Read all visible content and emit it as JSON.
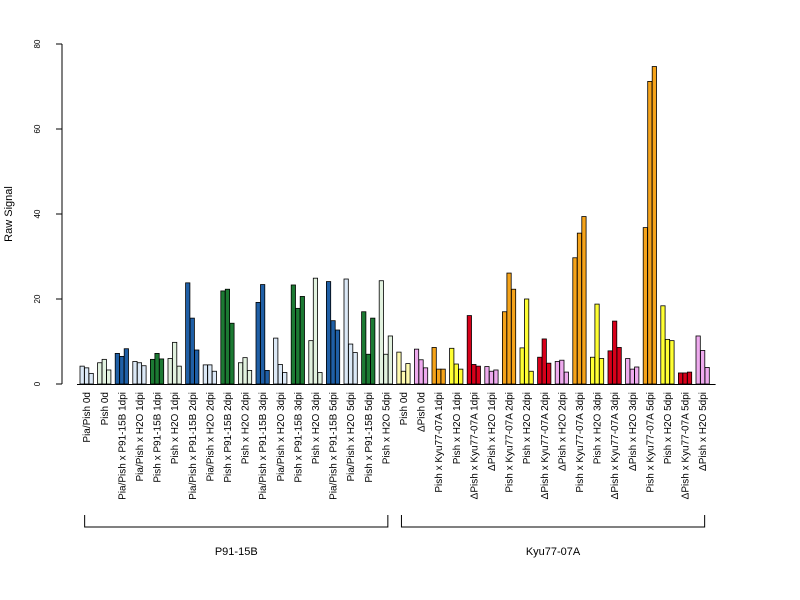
{
  "chart_data": {
    "type": "bar",
    "ylabel": "Raw Signal",
    "ylim": [
      0,
      80
    ],
    "yticks": [
      0,
      20,
      40,
      60,
      80
    ],
    "grid": false,
    "legend": "none",
    "colors": {
      "light_blue": "#dce9f7",
      "blue": "#1f5fa6",
      "light_green": "#e2f2df",
      "green": "#1c7a33",
      "light_yellow": "#fffbb0",
      "orange": "#f5a31a",
      "yellow": "#ffff33",
      "red": "#d7001a",
      "pink": "#eeaaee"
    },
    "categories": [
      {
        "label": "Pia/Pish 0d",
        "color": "light_blue",
        "values": [
          4.2,
          3.8,
          2.5
        ]
      },
      {
        "label": "Pish 0d",
        "color": "light_green",
        "values": [
          5.0,
          5.8,
          3.3
        ]
      },
      {
        "label": "Pia/Pish x P91-15B 1dpi",
        "color": "blue",
        "values": [
          7.2,
          6.5,
          8.3
        ]
      },
      {
        "label": "Pia/Pish x H2O 1dpi",
        "color": "light_blue",
        "values": [
          5.3,
          5.0,
          4.3
        ]
      },
      {
        "label": "Pish x P91-15B 1dpi",
        "color": "green",
        "values": [
          5.8,
          7.2,
          5.9
        ]
      },
      {
        "label": "Pish x H2O 1dpi",
        "color": "light_green",
        "values": [
          6.0,
          9.8,
          4.2
        ]
      },
      {
        "label": "Pia/Pish x P91-15B 2dpi",
        "color": "blue",
        "values": [
          23.8,
          15.5,
          8.0
        ]
      },
      {
        "label": "Pia/Pish x H2O 2dpi",
        "color": "light_blue",
        "values": [
          4.5,
          4.5,
          3.0
        ]
      },
      {
        "label": "Pish x P91-15B 2dpi",
        "color": "green",
        "values": [
          21.9,
          22.3,
          14.3
        ]
      },
      {
        "label": "Pish x H2O 2dpi",
        "color": "light_green",
        "values": [
          5.0,
          6.2,
          3.2
        ]
      },
      {
        "label": "Pia/Pish x P91-15B 3dpi",
        "color": "blue",
        "values": [
          19.2,
          23.4,
          3.2
        ]
      },
      {
        "label": "Pia/Pish x H2O 3dpi",
        "color": "light_blue",
        "values": [
          10.8,
          4.6,
          2.7
        ]
      },
      {
        "label": "Pish x P91-15B 3dpi",
        "color": "green",
        "values": [
          23.3,
          17.8,
          20.6
        ]
      },
      {
        "label": "Pish x H2O 3dpi",
        "color": "light_green",
        "values": [
          10.2,
          24.9,
          2.7
        ]
      },
      {
        "label": "Pia/Pish x P91-15B 5dpi",
        "color": "blue",
        "values": [
          24.1,
          14.9,
          12.7
        ]
      },
      {
        "label": "Pia/Pish x H2O 5dpi",
        "color": "light_blue",
        "values": [
          24.7,
          9.4,
          7.4
        ]
      },
      {
        "label": "Pish x P91-15B 5dpi",
        "color": "green",
        "values": [
          17.0,
          7.0,
          15.5
        ]
      },
      {
        "label": "Pish x H2O 5dpi",
        "color": "light_green",
        "values": [
          24.3,
          7.0,
          11.3
        ]
      },
      {
        "label": "Pish 0d",
        "color": "light_yellow",
        "values": [
          7.5,
          3.0,
          4.8
        ]
      },
      {
        "label": "ΔPish 0d",
        "color": "pink",
        "values": [
          8.2,
          5.7,
          3.8
        ]
      },
      {
        "label": "Pish x Kyu77-07A 1dpi",
        "color": "orange",
        "values": [
          8.6,
          3.5,
          3.5
        ]
      },
      {
        "label": "Pish x H2O 1dpi",
        "color": "yellow",
        "values": [
          8.4,
          4.7,
          3.5
        ]
      },
      {
        "label": "ΔPish x Kyu77-07A 1dpi",
        "color": "red",
        "values": [
          16.1,
          4.6,
          4.2
        ]
      },
      {
        "label": "ΔPish x H2O 1dpi",
        "color": "pink",
        "values": [
          4.1,
          3.0,
          3.3
        ]
      },
      {
        "label": "Pish x Kyu77-07A 2dpi",
        "color": "orange",
        "values": [
          17.0,
          26.1,
          22.3
        ]
      },
      {
        "label": "Pish x H2O 2dpi",
        "color": "yellow",
        "values": [
          8.5,
          20.0,
          3.0
        ]
      },
      {
        "label": "ΔPish x Kyu77-07A 2dpi",
        "color": "red",
        "values": [
          6.3,
          10.6,
          4.9
        ]
      },
      {
        "label": "ΔPish x H2O 2dpi",
        "color": "pink",
        "values": [
          5.3,
          5.6,
          2.8
        ]
      },
      {
        "label": "Pish x Kyu77-07A 3dpi",
        "color": "orange",
        "values": [
          29.7,
          35.5,
          39.4
        ]
      },
      {
        "label": "Pish x H2O 3dpi",
        "color": "yellow",
        "values": [
          6.3,
          18.8,
          6.0
        ]
      },
      {
        "label": "ΔPish x Kyu77-07A 3dpi",
        "color": "red",
        "values": [
          7.8,
          14.8,
          8.6
        ]
      },
      {
        "label": "ΔPish x H2O 3dpi",
        "color": "pink",
        "values": [
          6.0,
          3.5,
          4.0
        ]
      },
      {
        "label": "Pish x Kyu77-07A 5dpi",
        "color": "orange",
        "values": [
          36.8,
          71.2,
          74.7
        ]
      },
      {
        "label": "Pish x H2O 5dpi",
        "color": "yellow",
        "values": [
          18.4,
          10.5,
          10.2
        ]
      },
      {
        "label": "ΔPish x Kyu77-07A 5dpi",
        "color": "red",
        "values": [
          2.6,
          2.6,
          2.8
        ]
      },
      {
        "label": "ΔPish x H2O 5dpi",
        "color": "pink",
        "values": [
          11.3,
          7.9,
          3.9
        ]
      }
    ],
    "groups": [
      {
        "label": "P91-15B",
        "from": 0,
        "to": 17
      },
      {
        "label": "Kyu77-07A",
        "from": 18,
        "to": 35
      }
    ]
  }
}
